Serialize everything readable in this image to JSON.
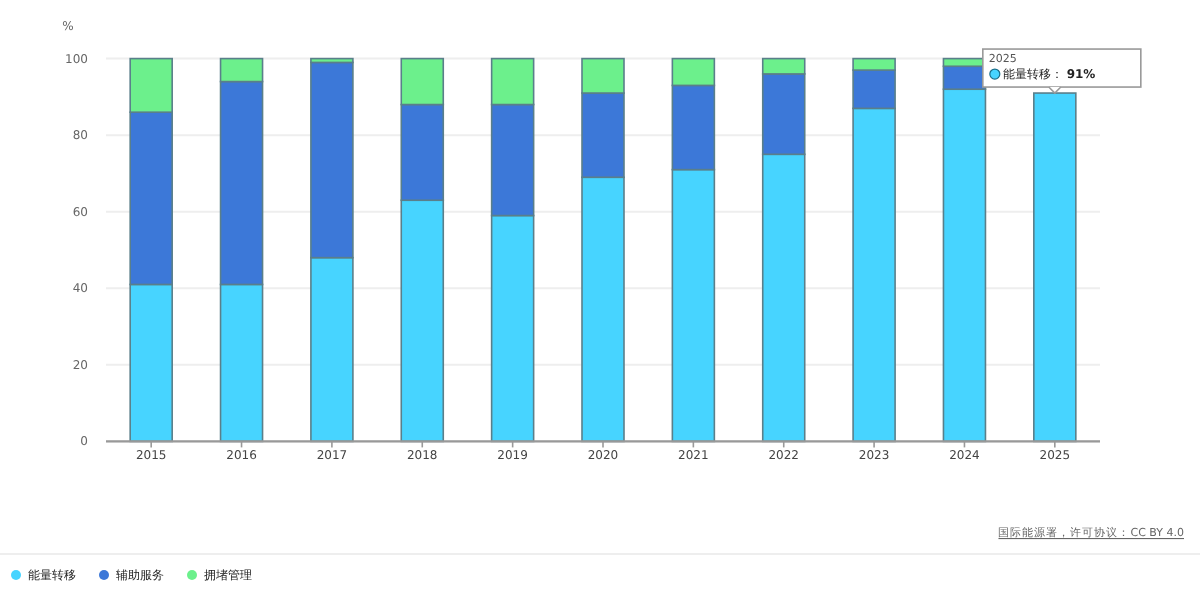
{
  "chart_data": {
    "type": "bar",
    "stacked": true,
    "ylabel": "%",
    "categories": [
      "2015",
      "2016",
      "2017",
      "2018",
      "2019",
      "2020",
      "2021",
      "2022",
      "2023",
      "2024",
      "2025"
    ],
    "series": [
      {
        "name": "能量转移",
        "color": "#47d4ff",
        "values": [
          41,
          41,
          48,
          63,
          59,
          69,
          71,
          75,
          87,
          92,
          91
        ]
      },
      {
        "name": "辅助服务",
        "color": "#3c78d8",
        "values": [
          45,
          53,
          51,
          25,
          29,
          22,
          22,
          21,
          10,
          6,
          null
        ]
      },
      {
        "name": "拥堵管理",
        "color": "#6cf08c",
        "values": [
          14,
          6,
          1,
          12,
          12,
          9,
          7,
          4,
          3,
          2,
          null
        ]
      }
    ],
    "ylim": [
      0,
      100
    ],
    "yticks": [
      0,
      20,
      40,
      60,
      80,
      100
    ],
    "grid": "y",
    "legend": "bottom left",
    "annotations": [
      "2025",
      {
        "text": "能量转移： **91%**",
        "x": "2025",
        "y": 91
      },
      "国际能源署，许可协议：CC BY 4.0"
    ]
  }
}
